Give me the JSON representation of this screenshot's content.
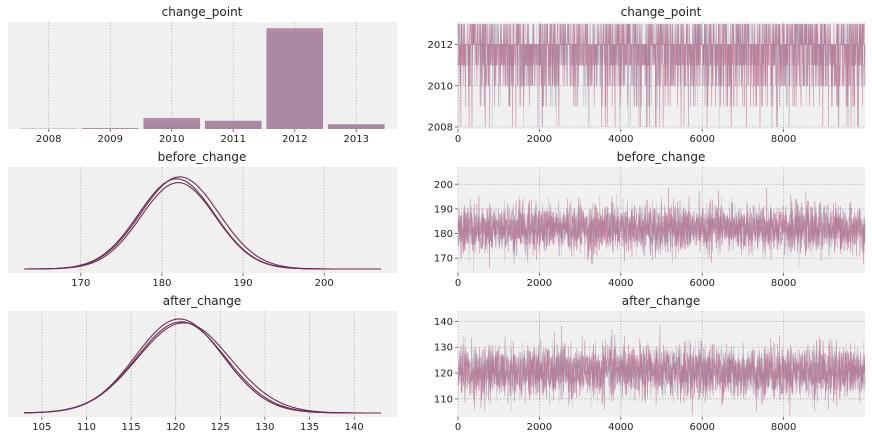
{
  "colors": {
    "panel_bg": "#f0f0f0",
    "grid": "#b0b0b0",
    "primary": "#a87d99",
    "chain_pink": "#c46a8a",
    "chain_gray": "#b8bcc8",
    "density_line": "#6d2e52"
  },
  "chart_data": [
    {
      "type": "bar",
      "title": "change_point",
      "categories": [
        "2008",
        "2009",
        "2010",
        "2011",
        "2012",
        "2013"
      ],
      "series": [
        {
          "values": [
            0.004,
            0.01,
            0.075,
            0.078,
            0.92,
            0.045
          ]
        },
        {
          "values": [
            0.003,
            0.008,
            0.105,
            0.078,
            0.96,
            0.045
          ]
        }
      ],
      "ylim": [
        0,
        1.0
      ],
      "grid": true
    },
    {
      "type": "line",
      "title": "change_point",
      "x_range": [
        0,
        9999
      ],
      "xticks": [
        0,
        2000,
        4000,
        6000,
        8000
      ],
      "yticks": [
        2008,
        2010,
        2012
      ],
      "ylim": [
        2007.9,
        2013.1
      ],
      "values_taken": [
        2008,
        2009,
        2010,
        2011,
        2012,
        2013
      ],
      "modal_value": 2012,
      "grid": true
    },
    {
      "type": "line",
      "title": "before_change",
      "x_range": [
        163,
        207
      ],
      "xticks": [
        170,
        180,
        190,
        200
      ],
      "series": [
        {
          "mean": 181.8,
          "sd": 4.7,
          "peak": 0.94
        },
        {
          "mean": 182.2,
          "sd": 4.8,
          "peak": 0.96
        },
        {
          "mean": 182.0,
          "sd": 4.6,
          "peak": 0.9
        }
      ],
      "grid": true
    },
    {
      "type": "line",
      "title": "before_change",
      "x_range": [
        0,
        9999
      ],
      "xticks": [
        0,
        2000,
        4000,
        6000,
        8000
      ],
      "yticks": [
        170,
        180,
        190,
        200
      ],
      "ylim": [
        164,
        207
      ],
      "center": 182,
      "spread": 4.7,
      "grid": true
    },
    {
      "type": "line",
      "title": "after_change",
      "x_range": [
        103,
        143
      ],
      "xticks": [
        105,
        110,
        115,
        120,
        125,
        130,
        135,
        140
      ],
      "series": [
        {
          "mean": 120.4,
          "sd": 4.9,
          "peak": 0.98
        },
        {
          "mean": 120.9,
          "sd": 5.2,
          "peak": 0.94
        },
        {
          "mean": 120.6,
          "sd": 5.0,
          "peak": 0.95
        }
      ],
      "grid": true
    },
    {
      "type": "line",
      "title": "after_change",
      "x_range": [
        0,
        9999
      ],
      "xticks": [
        0,
        2000,
        4000,
        6000,
        8000
      ],
      "yticks": [
        110,
        120,
        130,
        140
      ],
      "ylim": [
        103,
        144
      ],
      "center": 120.5,
      "spread": 5.0,
      "grid": true
    }
  ]
}
